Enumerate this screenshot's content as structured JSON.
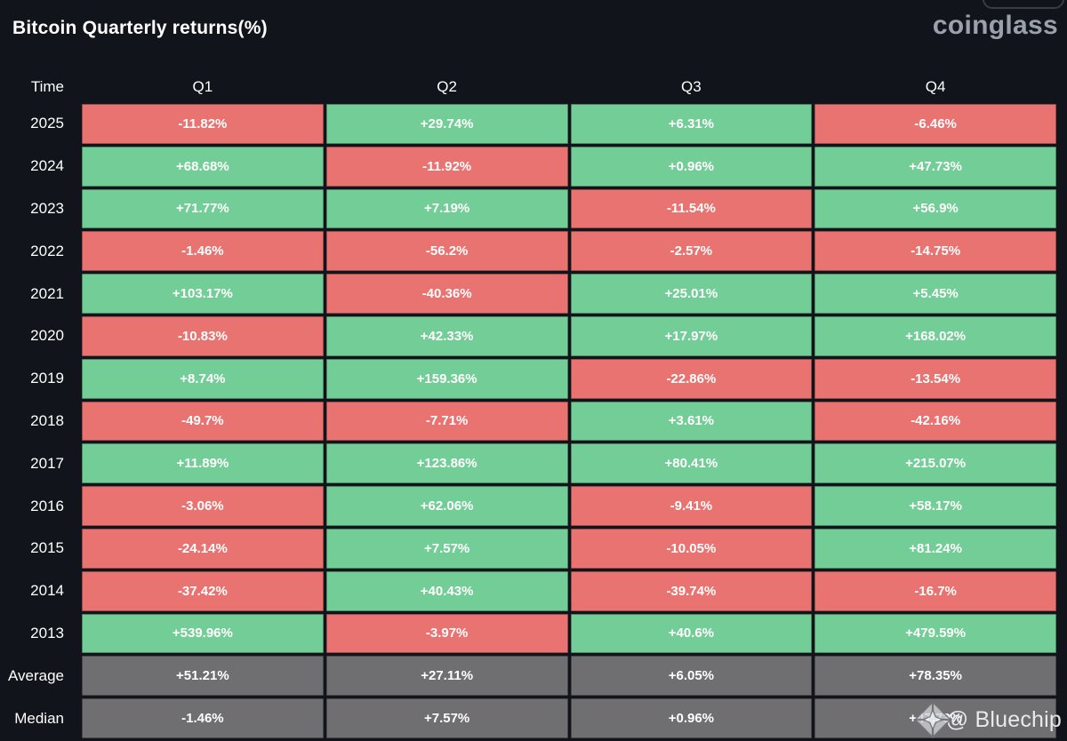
{
  "header": {
    "title": "Bitcoin Quarterly returns(%)",
    "logo_text": "coinglass"
  },
  "watermark": {
    "icon": "bluechip-diamond-icon",
    "text": "@ Bluechip"
  },
  "colors": {
    "background": "#11141A",
    "positive": "#73CD96",
    "negative": "#E97370",
    "neutral": "#6F6E71",
    "logo": "#9BA1AC"
  },
  "chart_data": {
    "type": "table",
    "title": "Bitcoin Quarterly returns(%)",
    "columns": [
      "Time",
      "Q1",
      "Q2",
      "Q3",
      "Q4"
    ],
    "tone_legend": {
      "positive": "green (gain)",
      "negative": "red (loss)",
      "neutral": "gray (summary rows)"
    },
    "rows": [
      {
        "label": "2025",
        "cells": [
          {
            "value": "-11.82%",
            "tone": "negative"
          },
          {
            "value": "+29.74%",
            "tone": "positive"
          },
          {
            "value": "+6.31%",
            "tone": "positive"
          },
          {
            "value": "-6.46%",
            "tone": "negative"
          }
        ]
      },
      {
        "label": "2024",
        "cells": [
          {
            "value": "+68.68%",
            "tone": "positive"
          },
          {
            "value": "-11.92%",
            "tone": "negative"
          },
          {
            "value": "+0.96%",
            "tone": "positive"
          },
          {
            "value": "+47.73%",
            "tone": "positive"
          }
        ]
      },
      {
        "label": "2023",
        "cells": [
          {
            "value": "+71.77%",
            "tone": "positive"
          },
          {
            "value": "+7.19%",
            "tone": "positive"
          },
          {
            "value": "-11.54%",
            "tone": "negative"
          },
          {
            "value": "+56.9%",
            "tone": "positive"
          }
        ]
      },
      {
        "label": "2022",
        "cells": [
          {
            "value": "-1.46%",
            "tone": "negative"
          },
          {
            "value": "-56.2%",
            "tone": "negative"
          },
          {
            "value": "-2.57%",
            "tone": "negative"
          },
          {
            "value": "-14.75%",
            "tone": "negative"
          }
        ]
      },
      {
        "label": "2021",
        "cells": [
          {
            "value": "+103.17%",
            "tone": "positive"
          },
          {
            "value": "-40.36%",
            "tone": "negative"
          },
          {
            "value": "+25.01%",
            "tone": "positive"
          },
          {
            "value": "+5.45%",
            "tone": "positive"
          }
        ]
      },
      {
        "label": "2020",
        "cells": [
          {
            "value": "-10.83%",
            "tone": "negative"
          },
          {
            "value": "+42.33%",
            "tone": "positive"
          },
          {
            "value": "+17.97%",
            "tone": "positive"
          },
          {
            "value": "+168.02%",
            "tone": "positive"
          }
        ]
      },
      {
        "label": "2019",
        "cells": [
          {
            "value": "+8.74%",
            "tone": "positive"
          },
          {
            "value": "+159.36%",
            "tone": "positive"
          },
          {
            "value": "-22.86%",
            "tone": "negative"
          },
          {
            "value": "-13.54%",
            "tone": "negative"
          }
        ]
      },
      {
        "label": "2018",
        "cells": [
          {
            "value": "-49.7%",
            "tone": "negative"
          },
          {
            "value": "-7.71%",
            "tone": "negative"
          },
          {
            "value": "+3.61%",
            "tone": "positive"
          },
          {
            "value": "-42.16%",
            "tone": "negative"
          }
        ]
      },
      {
        "label": "2017",
        "cells": [
          {
            "value": "+11.89%",
            "tone": "positive"
          },
          {
            "value": "+123.86%",
            "tone": "positive"
          },
          {
            "value": "+80.41%",
            "tone": "positive"
          },
          {
            "value": "+215.07%",
            "tone": "positive"
          }
        ]
      },
      {
        "label": "2016",
        "cells": [
          {
            "value": "-3.06%",
            "tone": "negative"
          },
          {
            "value": "+62.06%",
            "tone": "positive"
          },
          {
            "value": "-9.41%",
            "tone": "negative"
          },
          {
            "value": "+58.17%",
            "tone": "positive"
          }
        ]
      },
      {
        "label": "2015",
        "cells": [
          {
            "value": "-24.14%",
            "tone": "negative"
          },
          {
            "value": "+7.57%",
            "tone": "positive"
          },
          {
            "value": "-10.05%",
            "tone": "negative"
          },
          {
            "value": "+81.24%",
            "tone": "positive"
          }
        ]
      },
      {
        "label": "2014",
        "cells": [
          {
            "value": "-37.42%",
            "tone": "negative"
          },
          {
            "value": "+40.43%",
            "tone": "positive"
          },
          {
            "value": "-39.74%",
            "tone": "negative"
          },
          {
            "value": "-16.7%",
            "tone": "negative"
          }
        ]
      },
      {
        "label": "2013",
        "cells": [
          {
            "value": "+539.96%",
            "tone": "positive"
          },
          {
            "value": "-3.97%",
            "tone": "negative"
          },
          {
            "value": "+40.6%",
            "tone": "positive"
          },
          {
            "value": "+479.59%",
            "tone": "positive"
          }
        ]
      },
      {
        "label": "Average",
        "cells": [
          {
            "value": "+51.21%",
            "tone": "neutral"
          },
          {
            "value": "+27.11%",
            "tone": "neutral"
          },
          {
            "value": "+6.05%",
            "tone": "neutral"
          },
          {
            "value": "+78.35%",
            "tone": "neutral"
          }
        ]
      },
      {
        "label": "Median",
        "cells": [
          {
            "value": "-1.46%",
            "tone": "neutral"
          },
          {
            "value": "+7.57%",
            "tone": "neutral"
          },
          {
            "value": "+0.96%",
            "tone": "neutral"
          },
          {
            "value": "+47.73%",
            "tone": "neutral"
          }
        ]
      }
    ]
  }
}
